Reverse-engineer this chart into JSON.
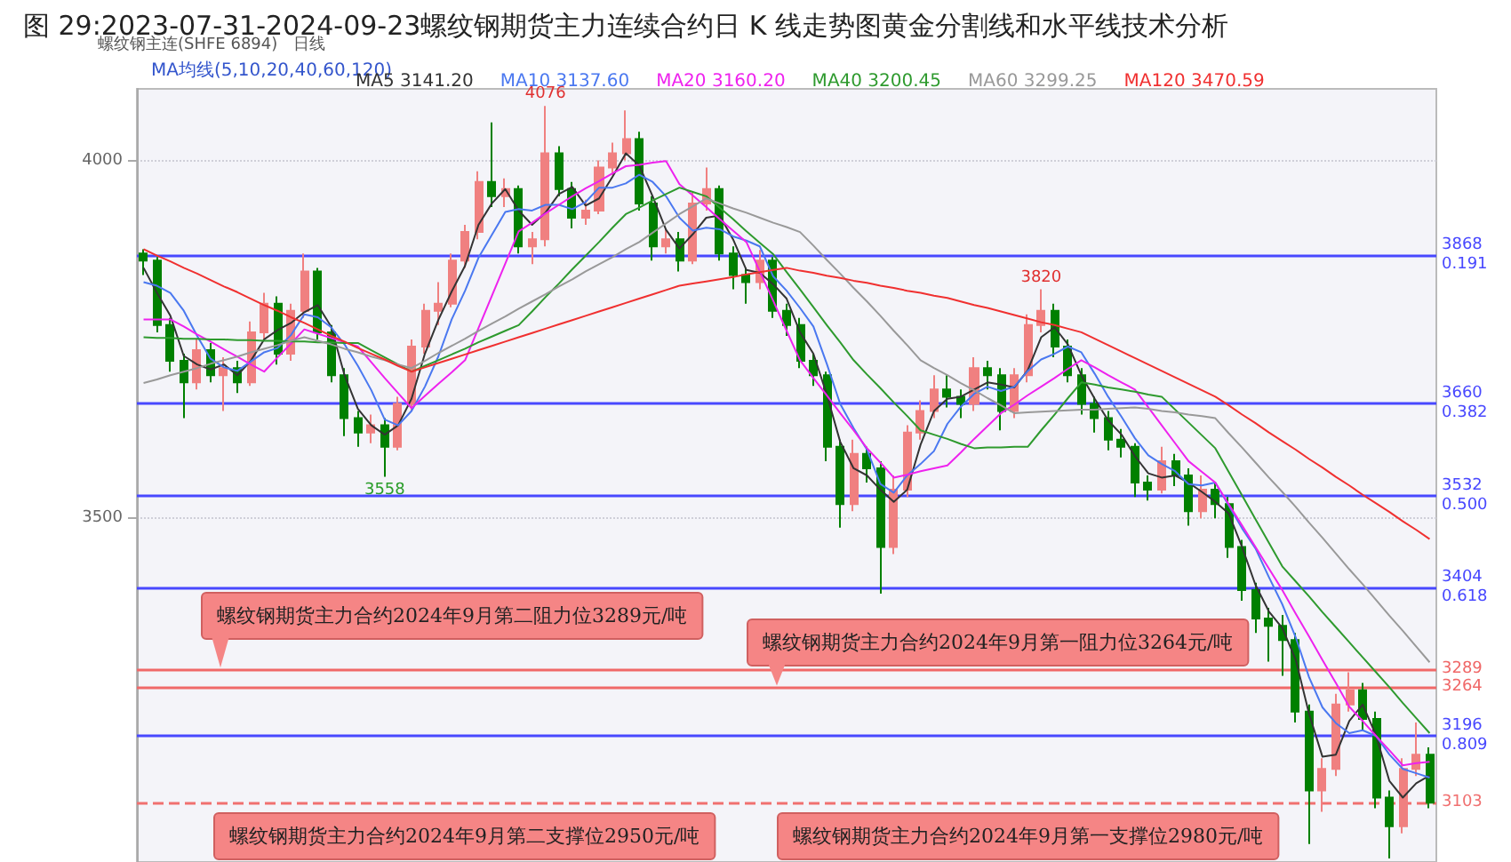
{
  "chart_data": {
    "type": "candlestick",
    "title": "图 29:2023-07-31-2024-09-23螺纹钢期货主力连续合约日 K 线走势图黄金分割线和水平线技术分析",
    "subtitle": "螺纹钢主连(SHFE 6894)",
    "legend_title": "MA均线(5,10,20,40,60,120)",
    "categories": [
      null,
      null,
      null,
      null,
      null,
      null,
      null,
      null,
      null,
      null,
      null,
      null,
      null,
      null,
      null,
      null,
      null,
      null,
      null,
      null,
      null,
      null,
      null,
      null,
      null,
      null,
      null,
      null,
      null,
      null,
      null,
      null,
      null,
      null,
      null,
      null,
      null,
      null,
      null,
      null,
      null,
      null,
      null,
      null,
      null,
      null,
      null,
      null,
      null,
      null,
      null,
      null,
      null,
      null,
      null,
      null,
      null,
      null,
      null,
      null,
      null,
      null,
      null,
      null,
      null,
      null,
      null,
      null,
      null,
      null,
      null,
      null,
      null,
      null,
      null,
      null,
      null,
      null,
      null,
      null,
      null,
      null,
      null,
      null,
      null,
      null,
      null,
      null,
      null,
      null,
      null,
      null,
      null,
      null,
      null,
      null,
      null
    ],
    "ohlc": [
      [
        3870,
        3876,
        3840,
        3860
      ],
      [
        3860,
        3865,
        3760,
        3770
      ],
      [
        3770,
        3780,
        3705,
        3720
      ],
      [
        3720,
        3730,
        3640,
        3690
      ],
      [
        3690,
        3750,
        3680,
        3735
      ],
      [
        3735,
        3745,
        3690,
        3700
      ],
      [
        3700,
        3725,
        3650,
        3710
      ],
      [
        3710,
        3720,
        3675,
        3690
      ],
      [
        3690,
        3775,
        3685,
        3760
      ],
      [
        3760,
        3815,
        3750,
        3800
      ],
      [
        3800,
        3810,
        3715,
        3730
      ],
      [
        3730,
        3800,
        3720,
        3790
      ],
      [
        3790,
        3870,
        3780,
        3845
      ],
      [
        3845,
        3850,
        3750,
        3760
      ],
      [
        3760,
        3770,
        3690,
        3700
      ],
      [
        3700,
        3710,
        3615,
        3640
      ],
      [
        3640,
        3650,
        3600,
        3620
      ],
      [
        3620,
        3645,
        3605,
        3630
      ],
      [
        3630,
        3640,
        3558,
        3600
      ],
      [
        3600,
        3670,
        3595,
        3660
      ],
      [
        3660,
        3750,
        3650,
        3740
      ],
      [
        3740,
        3800,
        3730,
        3790
      ],
      [
        3790,
        3830,
        3770,
        3800
      ],
      [
        3800,
        3870,
        3795,
        3860
      ],
      [
        3860,
        3910,
        3850,
        3900
      ],
      [
        3900,
        3985,
        3890,
        3970
      ],
      [
        3970,
        4053,
        3935,
        3950
      ],
      [
        3950,
        3975,
        3935,
        3960
      ],
      [
        3960,
        3965,
        3870,
        3880
      ],
      [
        3880,
        3900,
        3855,
        3890
      ],
      [
        3890,
        4076,
        3880,
        4010
      ],
      [
        4010,
        4020,
        3950,
        3960
      ],
      [
        3960,
        3970,
        3905,
        3920
      ],
      [
        3920,
        3945,
        3910,
        3930
      ],
      [
        3930,
        4000,
        3925,
        3990
      ],
      [
        3990,
        4025,
        3980,
        4010
      ],
      [
        4010,
        4070,
        4000,
        4030
      ],
      [
        4030,
        4040,
        3930,
        3940
      ],
      [
        3940,
        3950,
        3860,
        3880
      ],
      [
        3880,
        3905,
        3870,
        3890
      ],
      [
        3890,
        3900,
        3845,
        3860
      ],
      [
        3860,
        3955,
        3855,
        3940
      ],
      [
        3940,
        3990,
        3930,
        3960
      ],
      [
        3960,
        3965,
        3860,
        3870
      ],
      [
        3870,
        3880,
        3820,
        3840
      ],
      [
        3840,
        3850,
        3800,
        3830
      ],
      [
        3830,
        3875,
        3820,
        3860
      ],
      [
        3860,
        3865,
        3780,
        3790
      ],
      [
        3790,
        3800,
        3755,
        3770
      ],
      [
        3770,
        3780,
        3710,
        3720
      ],
      [
        3720,
        3730,
        3685,
        3700
      ],
      [
        3700,
        3705,
        3580,
        3600
      ],
      [
        3600,
        3610,
        3487,
        3520
      ],
      [
        3520,
        3610,
        3510,
        3590
      ],
      [
        3590,
        3600,
        3550,
        3570
      ],
      [
        3570,
        3580,
        3395,
        3460
      ],
      [
        3460,
        3560,
        3450,
        3540
      ],
      [
        3540,
        3630,
        3530,
        3620
      ],
      [
        3620,
        3665,
        3610,
        3650
      ],
      [
        3650,
        3700,
        3640,
        3680
      ],
      [
        3680,
        3700,
        3655,
        3670
      ],
      [
        3670,
        3680,
        3640,
        3660
      ],
      [
        3660,
        3725,
        3650,
        3710
      ],
      [
        3710,
        3720,
        3680,
        3700
      ],
      [
        3700,
        3710,
        3623,
        3650
      ],
      [
        3650,
        3710,
        3640,
        3700
      ],
      [
        3700,
        3785,
        3690,
        3770
      ],
      [
        3770,
        3820,
        3760,
        3790
      ],
      [
        3790,
        3800,
        3725,
        3740
      ],
      [
        3740,
        3750,
        3690,
        3700
      ],
      [
        3700,
        3710,
        3645,
        3660
      ],
      [
        3660,
        3670,
        3620,
        3640
      ],
      [
        3640,
        3650,
        3595,
        3610
      ],
      [
        3610,
        3625,
        3585,
        3600
      ],
      [
        3600,
        3605,
        3530,
        3550
      ],
      [
        3550,
        3560,
        3525,
        3540
      ],
      [
        3540,
        3600,
        3535,
        3580
      ],
      [
        3580,
        3590,
        3545,
        3560
      ],
      [
        3560,
        3570,
        3490,
        3510
      ],
      [
        3510,
        3560,
        3500,
        3540
      ],
      [
        3540,
        3550,
        3500,
        3520
      ],
      [
        3520,
        3530,
        3445,
        3460
      ],
      [
        3460,
        3470,
        3385,
        3400
      ],
      [
        3400,
        3410,
        3340,
        3360
      ],
      [
        3360,
        3375,
        3300,
        3350
      ],
      [
        3350,
        3365,
        3280,
        3330
      ],
      [
        3330,
        3340,
        3215,
        3230
      ],
      [
        3230,
        3240,
        3045,
        3120
      ],
      [
        3120,
        3165,
        3090,
        3150
      ],
      [
        3150,
        3255,
        3140,
        3240
      ],
      [
        3240,
        3285,
        3230,
        3260
      ],
      [
        3260,
        3270,
        3205,
        3220
      ],
      [
        3220,
        3230,
        3095,
        3110
      ],
      [
        3110,
        3120,
        3025,
        3070
      ],
      [
        3070,
        3165,
        3060,
        3150
      ],
      [
        3150,
        3215,
        3140,
        3170
      ],
      [
        3170,
        3180,
        3095,
        3103
      ]
    ],
    "colors": [
      "#008000",
      "#008000",
      "#008000",
      "#008000",
      "#f08080",
      "#008000",
      "#f08080",
      "#008000",
      "#f08080",
      "#f08080",
      "#008000",
      "#f08080",
      "#f08080",
      "#008000",
      "#008000",
      "#008000",
      "#008000",
      "#f08080",
      "#008000",
      "#f08080",
      "#f08080",
      "#f08080",
      "#f08080",
      "#f08080",
      "#f08080",
      "#f08080",
      "#008000",
      "#f08080",
      "#008000",
      "#f08080",
      "#f08080",
      "#008000",
      "#008000",
      "#f08080",
      "#f08080",
      "#f08080",
      "#f08080",
      "#008000",
      "#008000",
      "#f08080",
      "#008000",
      "#f08080",
      "#f08080",
      "#008000",
      "#008000",
      "#008000",
      "#f08080",
      "#008000",
      "#008000",
      "#008000",
      "#008000",
      "#008000",
      "#008000",
      "#f08080",
      "#008000",
      "#008000",
      "#f08080",
      "#f08080",
      "#f08080",
      "#f08080",
      "#008000",
      "#008000",
      "#f08080",
      "#008000",
      "#008000",
      "#f08080",
      "#f08080",
      "#f08080",
      "#008000",
      "#008000",
      "#008000",
      "#008000",
      "#008000",
      "#008000",
      "#008000",
      "#008000",
      "#f08080",
      "#008000",
      "#008000",
      "#f08080",
      "#008000",
      "#008000",
      "#008000",
      "#008000",
      "#008000",
      "#008000",
      "#008000",
      "#008000",
      "#f08080",
      "#f08080",
      "#f08080",
      "#008000",
      "#008000",
      "#008000",
      "#f08080",
      "#f08080",
      "#008000"
    ],
    "series": [
      {
        "name": "MA5 3141.20",
        "type": "line",
        "color": "#333333",
        "values": [
          3850,
          3815,
          3783,
          3727,
          3715,
          3708,
          3715,
          3700,
          3720,
          3750,
          3763,
          3773,
          3788,
          3798,
          3768,
          3700,
          3653,
          3630,
          3617,
          3630,
          3667,
          3730,
          3777,
          3817,
          3853,
          3910,
          3940,
          3960,
          3930,
          3910,
          3927,
          3953,
          3963,
          3937,
          3947,
          3977,
          4010,
          3993,
          3950,
          3903,
          3877,
          3897,
          3920,
          3923,
          3890,
          3847,
          3843,
          3827,
          3807,
          3760,
          3730,
          3673,
          3607,
          3570,
          3560,
          3540,
          3523,
          3540,
          3603,
          3650,
          3667,
          3670,
          3680,
          3690,
          3687,
          3683,
          3707,
          3753,
          3767,
          3743,
          3700,
          3667,
          3637,
          3617,
          3587,
          3563,
          3557,
          3560,
          3550,
          3537,
          3523,
          3507,
          3460,
          3407,
          3370,
          3347,
          3303,
          3227,
          3167,
          3170,
          3217,
          3240,
          3197,
          3133,
          3110,
          3130,
          3141
        ]
      },
      {
        "name": "MA10 3137.60",
        "type": "line",
        "color": "#4a78f0",
        "values": [
          3830,
          3825,
          3815,
          3790,
          3755,
          3723,
          3711,
          3706,
          3719,
          3732,
          3738,
          3756,
          3785,
          3781,
          3767,
          3743,
          3713,
          3679,
          3638,
          3630,
          3650,
          3684,
          3726,
          3778,
          3818,
          3864,
          3896,
          3928,
          3932,
          3930,
          3938,
          3938,
          3932,
          3942,
          3962,
          3962,
          3968,
          3980,
          3970,
          3950,
          3920,
          3902,
          3906,
          3904,
          3894,
          3888,
          3880,
          3838,
          3818,
          3794,
          3768,
          3716,
          3660,
          3626,
          3596,
          3548,
          3536,
          3560,
          3576,
          3594,
          3632,
          3656,
          3674,
          3684,
          3678,
          3684,
          3706,
          3722,
          3730,
          3740,
          3732,
          3702,
          3670,
          3642,
          3612,
          3588,
          3576,
          3566,
          3548,
          3546,
          3550,
          3518,
          3486,
          3458,
          3418,
          3380,
          3334,
          3278,
          3236,
          3214,
          3200,
          3204,
          3196,
          3170,
          3150,
          3144,
          3138
        ]
      },
      {
        "name": "MA20 3160.20",
        "type": "line",
        "color": "#ee22ee",
        "values": [
          3778,
          3778,
          3778,
          3768,
          3757,
          3747,
          3736,
          3726,
          3715,
          3705,
          3725,
          3744,
          3764,
          3758,
          3752,
          3746,
          3740,
          3718,
          3696,
          3675,
          3654,
          3671,
          3688,
          3704,
          3721,
          3766,
          3811,
          3856,
          3901,
          3913,
          3926,
          3938,
          3950,
          3961,
          3971,
          3982,
          3992,
          3994,
          3997,
          3999,
          3967,
          3951,
          3935,
          3918,
          3902,
          3886,
          3845,
          3804,
          3762,
          3721,
          3696,
          3672,
          3647,
          3623,
          3598,
          3578,
          3557,
          3561,
          3566,
          3570,
          3574,
          3592,
          3611,
          3629,
          3647,
          3659,
          3672,
          3684,
          3696,
          3709,
          3721,
          3711,
          3700,
          3690,
          3680,
          3655,
          3630,
          3605,
          3580,
          3565,
          3550,
          3520,
          3490,
          3460,
          3430,
          3400,
          3367,
          3335,
          3302,
          3270,
          3237,
          3217,
          3196,
          3176,
          3155,
          3158,
          3160
        ]
      },
      {
        "name": "MA40 3200.45",
        "type": "line",
        "color": "#2e9a2e",
        "values": [
          3753,
          3752,
          3752,
          3751,
          3751,
          3750,
          3750,
          3749,
          3749,
          3748,
          3748,
          3747,
          3747,
          3746,
          3746,
          3745,
          3745,
          3735,
          3725,
          3715,
          3705,
          3713,
          3721,
          3729,
          3737,
          3746,
          3754,
          3762,
          3770,
          3789,
          3809,
          3828,
          3848,
          3867,
          3886,
          3906,
          3925,
          3934,
          3944,
          3953,
          3962,
          3956,
          3950,
          3934,
          3918,
          3901,
          3885,
          3869,
          3844,
          3820,
          3795,
          3770,
          3746,
          3721,
          3701,
          3682,
          3662,
          3643,
          3623,
          3617,
          3611,
          3604,
          3598,
          3599,
          3599,
          3600,
          3600,
          3623,
          3645,
          3668,
          3690,
          3687,
          3683,
          3680,
          3677,
          3673,
          3670,
          3652,
          3634,
          3616,
          3598,
          3565,
          3532,
          3499,
          3466,
          3433,
          3412,
          3391,
          3369,
          3348,
          3327,
          3306,
          3285,
          3264,
          3242,
          3221,
          3200
        ]
      },
      {
        "name": "MA60 3299.25",
        "type": "line",
        "color": "#999999",
        "values": [
          3689,
          3694,
          3700,
          3705,
          3710,
          3716,
          3721,
          3726,
          3732,
          3737,
          3742,
          3748,
          3753,
          3748,
          3743,
          3737,
          3732,
          3726,
          3721,
          3715,
          3710,
          3720,
          3731,
          3741,
          3751,
          3762,
          3772,
          3782,
          3793,
          3803,
          3813,
          3824,
          3834,
          3845,
          3855,
          3865,
          3876,
          3886,
          3899,
          3912,
          3925,
          3936,
          3947,
          3940,
          3933,
          3927,
          3920,
          3913,
          3907,
          3900,
          3881,
          3861,
          3842,
          3822,
          3803,
          3783,
          3762,
          3742,
          3721,
          3710,
          3700,
          3689,
          3679,
          3668,
          3658,
          3647,
          3648,
          3649,
          3650,
          3651,
          3652,
          3652,
          3653,
          3654,
          3655,
          3653,
          3650,
          3648,
          3645,
          3643,
          3640,
          3619,
          3599,
          3578,
          3557,
          3537,
          3516,
          3494,
          3473,
          3451,
          3429,
          3408,
          3386,
          3364,
          3343,
          3321,
          3299
        ]
      },
      {
        "name": "MA120 3470.59",
        "type": "line",
        "color": "#f03030",
        "values": [
          3876,
          3867,
          3859,
          3850,
          3842,
          3833,
          3824,
          3816,
          3807,
          3798,
          3790,
          3781,
          3773,
          3764,
          3755,
          3747,
          3738,
          3730,
          3722,
          3713,
          3705,
          3711,
          3717,
          3723,
          3729,
          3735,
          3741,
          3747,
          3753,
          3759,
          3765,
          3771,
          3777,
          3783,
          3789,
          3795,
          3801,
          3807,
          3813,
          3819,
          3825,
          3828,
          3831,
          3834,
          3837,
          3841,
          3844,
          3847,
          3850,
          3846,
          3843,
          3839,
          3836,
          3832,
          3829,
          3825,
          3822,
          3818,
          3815,
          3811,
          3808,
          3803,
          3798,
          3794,
          3789,
          3784,
          3779,
          3774,
          3770,
          3765,
          3760,
          3751,
          3742,
          3733,
          3724,
          3715,
          3706,
          3697,
          3688,
          3679,
          3670,
          3658,
          3645,
          3633,
          3620,
          3608,
          3596,
          3583,
          3571,
          3558,
          3546,
          3533,
          3521,
          3509,
          3496,
          3484,
          3471
        ]
      }
    ],
    "ylim": [
      3020,
      4100
    ],
    "yticks": [
      3500,
      4000
    ],
    "grid": "y",
    "tick_labels": "y",
    "legend": "top",
    "line_style": "solid",
    "ref_lines": [
      {
        "axis": "y",
        "value": 3868,
        "label": "3868\n0.191",
        "color": "#4848ff"
      },
      {
        "axis": "y",
        "value": 3660,
        "label": "3660\n0.382",
        "color": "#4848ff"
      },
      {
        "axis": "y",
        "value": 3532,
        "label": "3532\n0.500",
        "color": "#4848ff"
      },
      {
        "axis": "y",
        "value": 3404,
        "label": "3404\n0.618",
        "color": "#4848ff"
      },
      {
        "axis": "y",
        "value": 3289,
        "label": "3289",
        "color": "#f06868"
      },
      {
        "axis": "y",
        "value": 3264,
        "label": "3264",
        "color": "#f06868"
      },
      {
        "axis": "y",
        "value": 3196,
        "label": "3196\n0.809",
        "color": "#4848ff"
      },
      {
        "axis": "y",
        "value": 3103,
        "label": "3103",
        "color": "#f07070",
        "line_style": "dashed"
      }
    ],
    "annotations": [
      "日线",
      {
        "text": "4076",
        "y": 4076
      },
      {
        "text": "3820",
        "y": 3820
      },
      {
        "text": "3558",
        "y": 3558
      },
      {
        "text": "螺纹钢期货主力合约2024年9月第二阻力位3289元/吨",
        "y": 3289
      },
      {
        "text": "螺纹钢期货主力合约2024年9月第一阻力位3264元/吨",
        "y": 3264
      },
      "螺纹钢期货主力合约2024年9月第二支撑位2950元/吨",
      "螺纹钢期货主力合约2024年9月第一支撑位2980元/吨"
    ]
  }
}
